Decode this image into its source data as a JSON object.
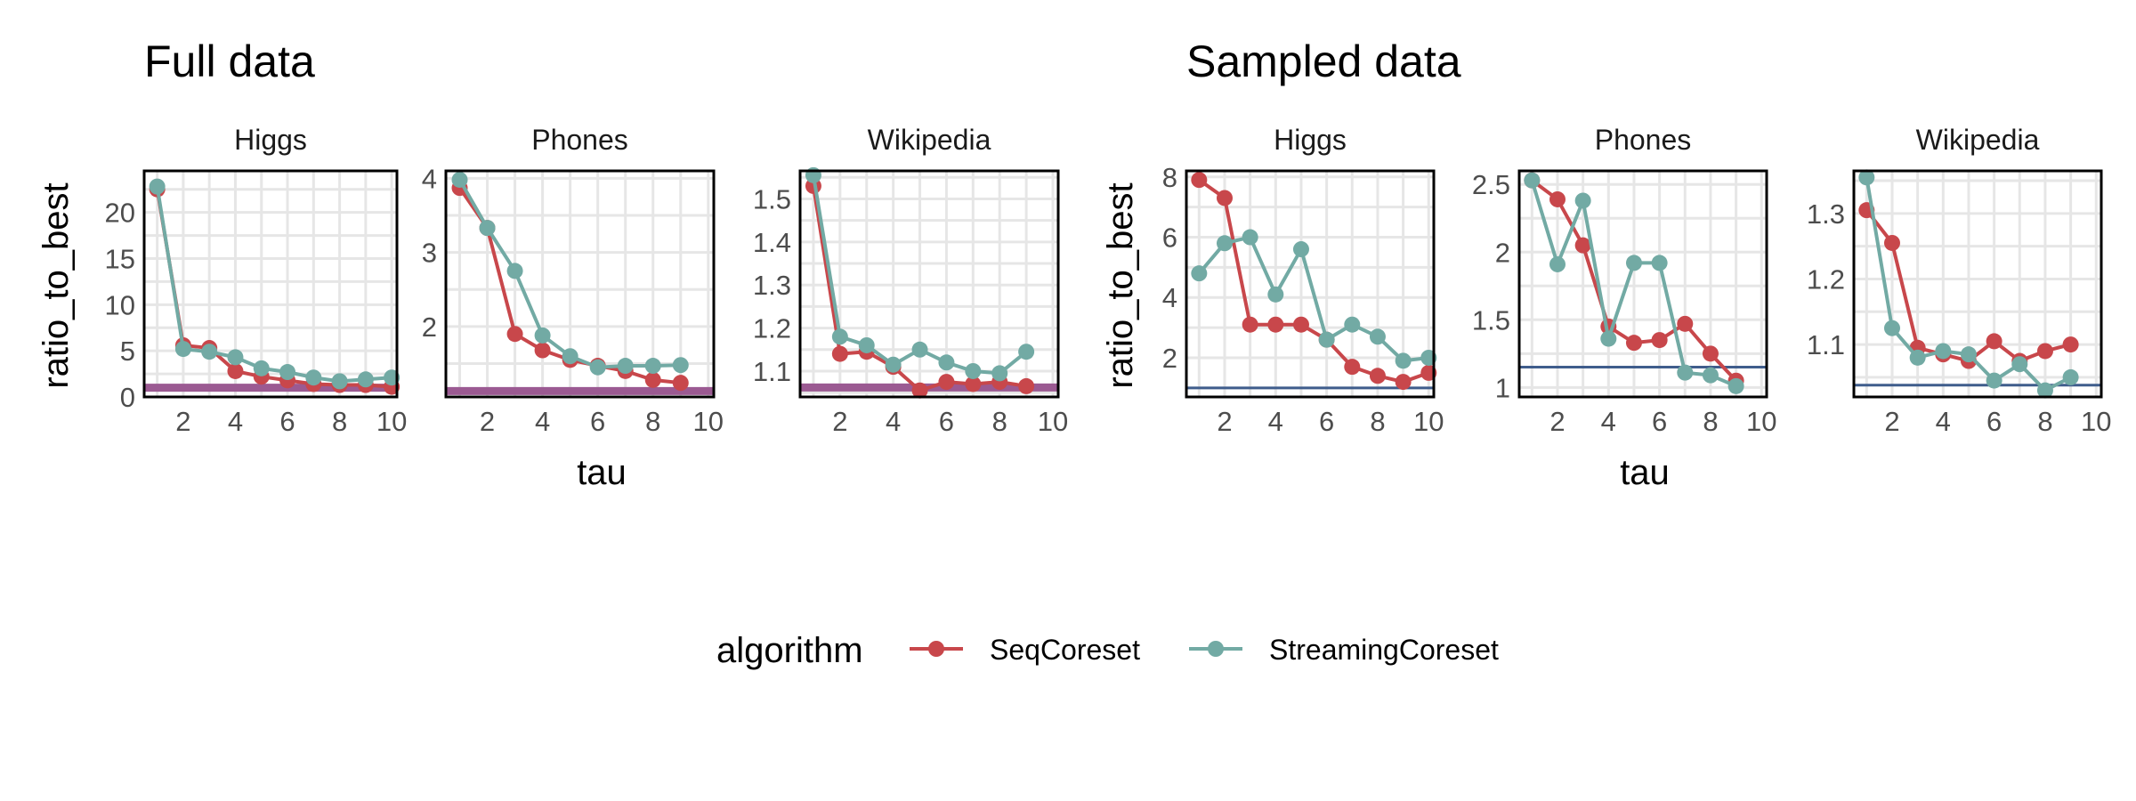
{
  "colors": {
    "SeqCoreset": "#c8474b",
    "StreamingCoreset": "#72aaa4",
    "ref_full": "#9b5a92",
    "ref_sampled": "#3f5d8c"
  },
  "legend": {
    "title": "algorithm",
    "entries": [
      "SeqCoreset",
      "StreamingCoreset"
    ]
  },
  "chart_data": [
    {
      "type": "line",
      "title": "Full data",
      "xlabel": "tau",
      "ylabel": "ratio_to_best",
      "panels": [
        {
          "label": "Higgs",
          "xlim": [
            0.5,
            10.2
          ],
          "xticks": [
            2,
            4,
            6,
            8,
            10
          ],
          "ylim": [
            0,
            24.5
          ],
          "yticks": [
            0,
            5,
            10,
            15,
            20
          ],
          "reference_y": 1.0,
          "reference_width": 9,
          "series": [
            {
              "name": "SeqCoreset",
              "x": [
                1,
                2,
                3,
                4,
                5,
                6,
                7,
                8,
                9,
                10
              ],
              "y": [
                22.5,
                5.6,
                5.3,
                2.8,
                2.2,
                1.8,
                1.4,
                1.3,
                1.3,
                1.1
              ]
            },
            {
              "name": "StreamingCoreset",
              "x": [
                1,
                2,
                3,
                4,
                5,
                6,
                7,
                8,
                9,
                10
              ],
              "y": [
                22.8,
                5.2,
                4.9,
                4.3,
                3.1,
                2.7,
                2.1,
                1.7,
                1.9,
                2.1
              ]
            }
          ]
        },
        {
          "label": "Phones",
          "xlim": [
            0.5,
            10.2
          ],
          "xticks": [
            2,
            4,
            6,
            8,
            10
          ],
          "ylim": [
            1.05,
            4.1
          ],
          "yticks": [
            2,
            3,
            4
          ],
          "reference_y": 1.13,
          "reference_width": 9,
          "series": [
            {
              "name": "SeqCoreset",
              "x": [
                1,
                2,
                3,
                4,
                5,
                6,
                7,
                8,
                9
              ],
              "y": [
                3.87,
                3.33,
                1.9,
                1.68,
                1.55,
                1.47,
                1.4,
                1.28,
                1.24
              ]
            },
            {
              "name": "StreamingCoreset",
              "x": [
                1,
                2,
                3,
                4,
                5,
                6,
                7,
                8,
                9
              ],
              "y": [
                3.98,
                3.33,
                2.75,
                1.88,
                1.6,
                1.45,
                1.47,
                1.47,
                1.48
              ]
            }
          ]
        },
        {
          "label": "Wikipedia",
          "xlim": [
            0.5,
            10.2
          ],
          "xticks": [
            2,
            4,
            6,
            8,
            10
          ],
          "ylim": [
            1.04,
            1.565
          ],
          "yticks": [
            1.1,
            1.2,
            1.3,
            1.4,
            1.5
          ],
          "reference_y": 1.062,
          "reference_width": 9,
          "series": [
            {
              "name": "SeqCoreset",
              "x": [
                1,
                2,
                3,
                4,
                5,
                6,
                7,
                8,
                9
              ],
              "y": [
                1.53,
                1.14,
                1.145,
                1.11,
                1.055,
                1.075,
                1.07,
                1.075,
                1.065
              ]
            },
            {
              "name": "StreamingCoreset",
              "x": [
                1,
                2,
                3,
                4,
                5,
                6,
                7,
                8,
                9
              ],
              "y": [
                1.555,
                1.18,
                1.16,
                1.115,
                1.15,
                1.12,
                1.1,
                1.095,
                1.145
              ]
            }
          ]
        }
      ]
    },
    {
      "type": "line",
      "title": "Sampled data",
      "xlabel": "tau",
      "ylabel": "ratio_to_best",
      "panels": [
        {
          "label": "Higgs",
          "xlim": [
            0.5,
            10.2
          ],
          "xticks": [
            2,
            4,
            6,
            8,
            10
          ],
          "ylim": [
            0.7,
            8.2
          ],
          "yticks": [
            2,
            4,
            6,
            8
          ],
          "reference_y": 1.0,
          "reference_width": 3,
          "series": [
            {
              "name": "SeqCoreset",
              "x": [
                1,
                2,
                3,
                4,
                5,
                6,
                7,
                8,
                9,
                10
              ],
              "y": [
                7.9,
                7.3,
                3.1,
                3.1,
                3.1,
                2.6,
                1.7,
                1.4,
                1.2,
                1.5
              ]
            },
            {
              "name": "StreamingCoreset",
              "x": [
                1,
                2,
                3,
                4,
                5,
                6,
                7,
                8,
                9,
                10
              ],
              "y": [
                4.8,
                5.8,
                6.0,
                4.1,
                5.6,
                2.6,
                3.1,
                2.7,
                1.9,
                2.0
              ]
            }
          ]
        },
        {
          "label": "Phones",
          "xlim": [
            0.5,
            10.2
          ],
          "xticks": [
            2,
            4,
            6,
            8,
            10
          ],
          "ylim": [
            0.93,
            2.6
          ],
          "yticks": [
            1.0,
            1.5,
            2.0,
            2.5
          ],
          "reference_y": 1.15,
          "reference_width": 3,
          "series": [
            {
              "name": "SeqCoreset",
              "x": [
                1,
                2,
                3,
                4,
                5,
                6,
                7,
                8,
                9
              ],
              "y": [
                2.53,
                2.39,
                2.05,
                1.45,
                1.33,
                1.35,
                1.47,
                1.25,
                1.05
              ]
            },
            {
              "name": "StreamingCoreset",
              "x": [
                1,
                2,
                3,
                4,
                5,
                6,
                7,
                8,
                9
              ],
              "y": [
                2.53,
                1.91,
                2.38,
                1.36,
                1.92,
                1.92,
                1.11,
                1.09,
                1.01
              ]
            }
          ]
        },
        {
          "label": "Wikipedia",
          "xlim": [
            0.5,
            10.2
          ],
          "xticks": [
            2,
            4,
            6,
            8,
            10
          ],
          "ylim": [
            1.02,
            1.365
          ],
          "yticks": [
            1.1,
            1.2,
            1.3
          ],
          "reference_y": 1.038,
          "reference_width": 3,
          "series": [
            {
              "name": "SeqCoreset",
              "x": [
                1,
                2,
                3,
                4,
                5,
                6,
                7,
                8,
                9
              ],
              "y": [
                1.305,
                1.255,
                1.095,
                1.085,
                1.075,
                1.105,
                1.075,
                1.09,
                1.1
              ]
            },
            {
              "name": "StreamingCoreset",
              "x": [
                1,
                2,
                3,
                4,
                5,
                6,
                7,
                8,
                9
              ],
              "y": [
                1.355,
                1.125,
                1.08,
                1.09,
                1.085,
                1.045,
                1.07,
                1.03,
                1.05
              ]
            }
          ]
        }
      ]
    }
  ]
}
